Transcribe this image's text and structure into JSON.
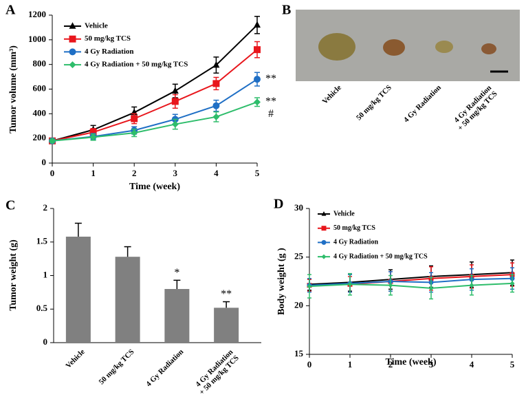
{
  "chart_data": [
    {
      "panel_label": "A",
      "type": "line",
      "xlabel": "Time (week)",
      "ylabel": "Tumor volume (mm³)",
      "x": [
        0,
        1,
        2,
        3,
        4,
        5
      ],
      "xlim": [
        0,
        5
      ],
      "xticks": [
        0,
        1,
        2,
        3,
        4,
        5
      ],
      "ylim": [
        0,
        1200
      ],
      "yticks": [
        0,
        200,
        400,
        600,
        800,
        1000,
        1200
      ],
      "legend": "upper left",
      "series": [
        {
          "name": "Vehicle",
          "color": "#000000",
          "marker": "triangle",
          "values": [
            180,
            270,
            410,
            585,
            795,
            1120
          ],
          "errors": [
            15,
            35,
            45,
            55,
            65,
            70
          ]
        },
        {
          "name": "50 mg/kg TCS",
          "color": "#e8161c",
          "marker": "square",
          "values": [
            180,
            250,
            360,
            500,
            645,
            920
          ],
          "errors": [
            15,
            30,
            40,
            55,
            50,
            65
          ]
        },
        {
          "name": "4 Gy Radiation",
          "color": "#1f6fc5",
          "marker": "circle",
          "values": [
            180,
            215,
            265,
            355,
            465,
            680
          ],
          "errors": [
            15,
            25,
            30,
            40,
            45,
            55
          ],
          "significance": [
            "**"
          ]
        },
        {
          "name": "4 Gy Radiation + 50 mg/kg TCS",
          "color": "#2ebd6b",
          "marker": "diamond",
          "values": [
            180,
            210,
            245,
            315,
            375,
            495
          ],
          "errors": [
            15,
            25,
            30,
            40,
            40,
            35
          ],
          "significance": [
            "**",
            "#"
          ]
        }
      ]
    },
    {
      "panel_label": "C",
      "type": "bar",
      "ylabel": "Tumor weight (g)",
      "categories": [
        "Vehicle",
        "50 mg/kg TCS",
        "4 Gy Radiation",
        [
          "4 Gy Radiation",
          "+ 50 mg/kg TCS"
        ]
      ],
      "values": [
        1.58,
        1.28,
        0.8,
        0.52
      ],
      "errors": [
        0.2,
        0.15,
        0.13,
        0.09
      ],
      "significance": [
        null,
        null,
        "*",
        "**"
      ],
      "color": "#808080",
      "ylim": [
        0,
        2
      ],
      "yticks": [
        0,
        0.5,
        1,
        1.5,
        2
      ]
    },
    {
      "panel_label": "D",
      "type": "line",
      "xlabel": "Time (week)",
      "ylabel": "Body weight (g )",
      "x": [
        0,
        1,
        2,
        3,
        4,
        5
      ],
      "xlim": [
        0,
        5
      ],
      "xticks": [
        0,
        1,
        2,
        3,
        4,
        5
      ],
      "ylim": [
        15,
        30
      ],
      "yticks": [
        15,
        20,
        25,
        30
      ],
      "legend": "upper left",
      "series": [
        {
          "name": "Vehicle",
          "color": "#000000",
          "marker": "triangle",
          "values": [
            22.2,
            22.4,
            22.7,
            23.0,
            23.2,
            23.4
          ],
          "errors": [
            0.6,
            0.9,
            1.0,
            1.1,
            1.3,
            1.3
          ]
        },
        {
          "name": "50 mg/kg TCS",
          "color": "#e8161c",
          "marker": "square",
          "values": [
            22.1,
            22.2,
            22.5,
            22.8,
            23.0,
            23.2
          ],
          "errors": [
            0.6,
            0.8,
            1.0,
            1.2,
            1.2,
            1.2
          ]
        },
        {
          "name": "4 Gy Radiation",
          "color": "#1f6fc5",
          "marker": "circle",
          "values": [
            22.1,
            22.3,
            22.5,
            22.4,
            22.7,
            22.8
          ],
          "errors": [
            0.7,
            0.9,
            1.0,
            1.0,
            1.1,
            1.1
          ]
        },
        {
          "name": "4 Gy Radiation + 50 mg/kg TCS",
          "color": "#2ebd6b",
          "marker": "diamond",
          "values": [
            22.0,
            22.2,
            22.1,
            21.8,
            22.1,
            22.3
          ],
          "errors": [
            1.2,
            1.1,
            1.0,
            1.1,
            1.0,
            0.9
          ]
        }
      ]
    }
  ],
  "photo": {
    "panel_label": "B",
    "captions": [
      "Vehicle",
      "50 mg/kg TCS",
      "4 Gy Radiation",
      [
        "4 Gy Radiation",
        "+ 50 mg/kg TCS"
      ]
    ]
  }
}
